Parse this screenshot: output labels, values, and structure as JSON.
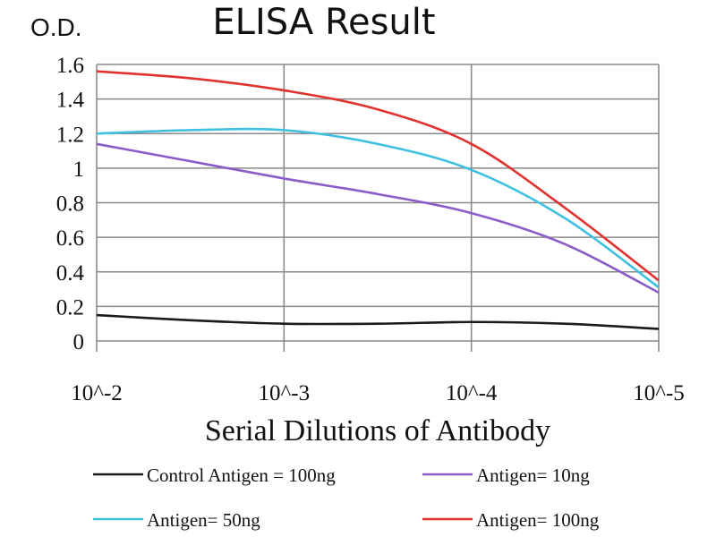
{
  "chart_data": {
    "type": "line",
    "title": "ELISA Result",
    "ylabel": "O.D.",
    "xlabel": "Serial Dilutions of Antibody",
    "x": [
      "10^-2",
      "10^-3",
      "10^-4",
      "10^-5"
    ],
    "x_positions": [
      0,
      1,
      2,
      3
    ],
    "ylim": [
      0,
      1.6
    ],
    "yticks": [
      "0",
      "0.2",
      "0.4",
      "0.6",
      "0.8",
      "1",
      "1.2",
      "1.4",
      "1.6"
    ],
    "ytick_values": [
      0,
      0.2,
      0.4,
      0.6,
      0.8,
      1.0,
      1.2,
      1.4,
      1.6
    ],
    "grid": true,
    "legend_position": "bottom",
    "series": [
      {
        "name": "Control Antigen = 100ng",
        "color": "#1a1a1a",
        "points": [
          [
            0,
            0.15
          ],
          [
            0.5,
            0.12
          ],
          [
            1,
            0.1
          ],
          [
            1.5,
            0.1
          ],
          [
            2,
            0.11
          ],
          [
            2.5,
            0.1
          ],
          [
            3,
            0.07
          ]
        ]
      },
      {
        "name": "Antigen= 10ng",
        "color": "#8a5cc8",
        "points": [
          [
            0,
            1.14
          ],
          [
            0.5,
            1.04
          ],
          [
            1,
            0.94
          ],
          [
            1.5,
            0.85
          ],
          [
            2,
            0.74
          ],
          [
            2.5,
            0.56
          ],
          [
            3,
            0.28
          ]
        ]
      },
      {
        "name": "Antigen= 50ng",
        "color": "#3ec1e0",
        "points": [
          [
            0,
            1.2
          ],
          [
            0.5,
            1.22
          ],
          [
            1,
            1.22
          ],
          [
            1.5,
            1.14
          ],
          [
            2,
            0.99
          ],
          [
            2.5,
            0.71
          ],
          [
            3,
            0.31
          ]
        ]
      },
      {
        "name": "Antigen= 100ng",
        "color": "#e0322e",
        "points": [
          [
            0,
            1.56
          ],
          [
            0.5,
            1.52
          ],
          [
            1,
            1.45
          ],
          [
            1.5,
            1.34
          ],
          [
            2,
            1.14
          ],
          [
            2.5,
            0.77
          ],
          [
            3,
            0.35
          ]
        ]
      }
    ]
  }
}
